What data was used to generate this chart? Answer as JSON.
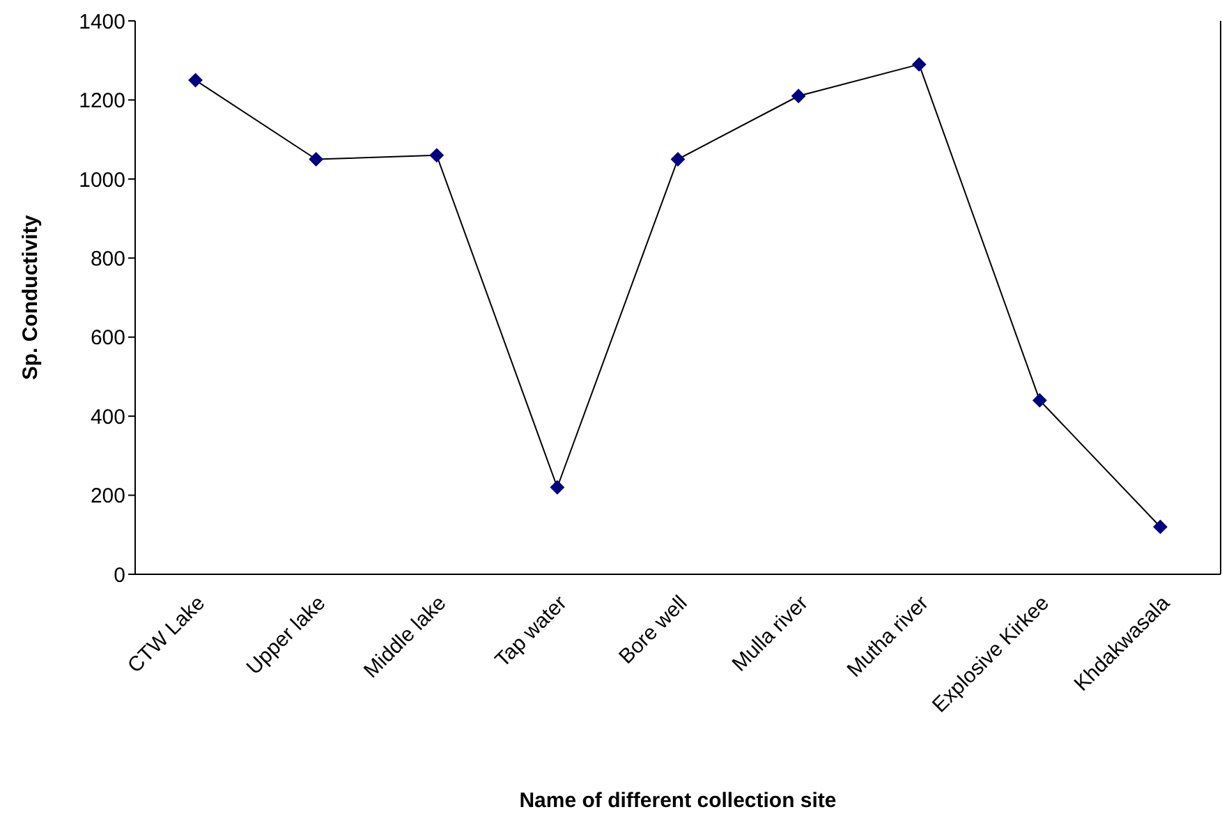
{
  "chart_data": {
    "type": "line",
    "xlabel": "Name of different collection site",
    "ylabel": "Sp. Conductivity",
    "categories": [
      "CTW Lake",
      "Upper lake",
      "Middle lake",
      "Tap water",
      "Bore well",
      "Mulla river",
      "Mutha river",
      "Explosive Kirkee",
      "Khdakwasala"
    ],
    "series": [
      {
        "color": "#000080",
        "values": [
          1250,
          1050,
          1060,
          220,
          1050,
          1210,
          1290,
          440,
          120
        ]
      }
    ],
    "ylim": [
      0,
      1400
    ],
    "yticks": [
      0,
      200,
      400,
      600,
      800,
      1000,
      1200,
      1400
    ],
    "marker": "diamond",
    "line_style": "solid",
    "grid": false,
    "legend": false
  }
}
